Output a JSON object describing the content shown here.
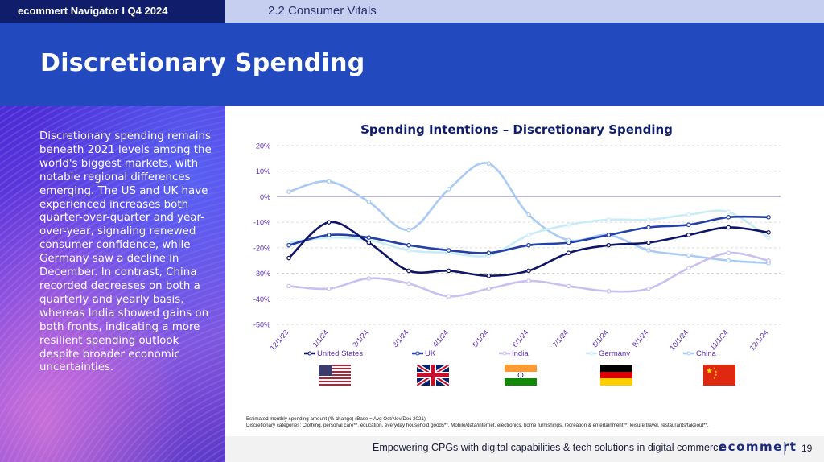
{
  "header": {
    "brand": "ecommert Navigator  I Q4 2024",
    "section": "2.2 Consumer Vitals",
    "title": "Discretionary Spending"
  },
  "sidebar": {
    "text": "Discretionary spending remains beneath 2021 levels among the world's biggest markets, with notable regional differences emerging. The US and UK have experienced increases both quarter-over-quarter and year-over-year, signaling renewed consumer confidence, while Germany saw a decline in December. In contrast, China recorded decreases on both a quarterly and yearly basis, whereas India showed gains on both fronts, indicating a more resilient spending outlook despite broader economic uncertainties."
  },
  "chart_data": {
    "type": "line",
    "title": "Spending Intentions – Discretionary Spending",
    "categories": [
      "12/1/23",
      "1/1/24",
      "2/1/24",
      "3/1/24",
      "4/1/24",
      "5/1/24",
      "6/1/24",
      "7/1/24",
      "8/1/24",
      "9/1/24",
      "10/1/24",
      "11/1/24",
      "12/1/24"
    ],
    "y_ticks": [
      20,
      10,
      0,
      -10,
      -20,
      -30,
      -40,
      -50
    ],
    "y_tick_labels": [
      "20%",
      "10%",
      "0%",
      "-10%",
      "-20%",
      "-30%",
      "-40%",
      "-50%"
    ],
    "ylim": [
      -50,
      20
    ],
    "grid": true,
    "legend_position": "bottom",
    "series": [
      {
        "name": "United States",
        "color": "#0f1566",
        "values": [
          -24,
          -10,
          -18,
          -29,
          -29,
          -31,
          -29,
          -22,
          -19,
          -18,
          -15,
          -12,
          -14
        ]
      },
      {
        "name": "UK",
        "color": "#2340a8",
        "values": [
          -19,
          -15,
          -16,
          -19,
          -21,
          -22,
          -19,
          -18,
          -15,
          -12,
          -11,
          -8,
          -8
        ]
      },
      {
        "name": "India",
        "color": "#cbbff2",
        "values": [
          -35,
          -36,
          -32,
          -34,
          -39,
          -36,
          -33,
          -35,
          -37,
          -36,
          -28,
          -22,
          -25
        ]
      },
      {
        "name": "Germany",
        "color": "#c8ecf6",
        "values": [
          -18,
          -16,
          -17,
          -21,
          -22,
          -23,
          -15,
          -11,
          -9,
          -9,
          -7,
          -6,
          -16
        ]
      },
      {
        "name": "China",
        "color": "#a9caf5",
        "values": [
          2,
          6,
          -2,
          -13,
          3,
          13,
          -7,
          -17,
          -15,
          -21,
          -23,
          -25,
          -26
        ]
      }
    ]
  },
  "notes": {
    "line1": "Estimated monthly spending amount (% change) (Base = Avg Oct/Nov/Dec 2021).",
    "line2": "Discretionary categories: Clothing, personal care**, education, everyday household goods**, Mobile/data/internet, electronics, home furnishings, recreation & entertainment**, leisure travel, restaurants/takeout**."
  },
  "footer": {
    "tagline": "Empowering CPGs with digital capabilities & tech solutions in digital commerce",
    "logo": "ecommert",
    "page_number": "19"
  },
  "flags": [
    "us-flag-icon",
    "uk-flag-icon",
    "india-flag-icon",
    "germany-flag-icon",
    "china-flag-icon"
  ]
}
